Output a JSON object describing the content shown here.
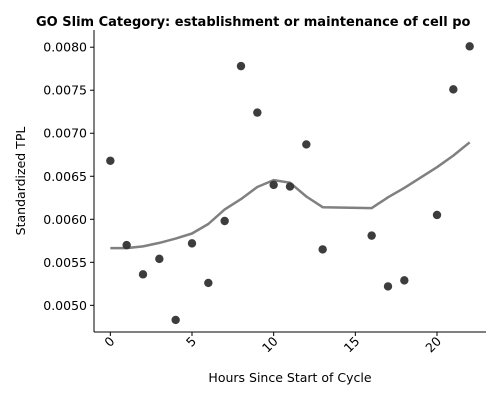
{
  "chart_data": {
    "type": "scatter",
    "title": "GO Slim Category: establishment or maintenance of cell po",
    "xlabel": "Hours Since Start of Cycle",
    "ylabel": "Standardized TPL",
    "xlim": [
      -1,
      23
    ],
    "ylim": [
      0.00469,
      0.0082
    ],
    "xticks": [
      0,
      5,
      10,
      15,
      20
    ],
    "yticks": [
      0.005,
      0.0055,
      0.006,
      0.0065,
      0.007,
      0.0075,
      0.008
    ],
    "ytick_labels": [
      "0.0050",
      "0.0055",
      "0.0060",
      "0.0065",
      "0.0070",
      "0.0075",
      "0.0080"
    ],
    "grid": false,
    "points": {
      "x": [
        0,
        1,
        2,
        3,
        4,
        5,
        6,
        7,
        8,
        9,
        10,
        11,
        12,
        13,
        16,
        17,
        18,
        20,
        21,
        22
      ],
      "y": [
        0.00668,
        0.0057,
        0.00536,
        0.00554,
        0.00483,
        0.00572,
        0.00526,
        0.00598,
        0.00778,
        0.00724,
        0.0064,
        0.00638,
        0.00687,
        0.00565,
        0.00581,
        0.00522,
        0.00529,
        0.00605,
        0.00751,
        0.00801
      ],
      "color": "#333333"
    },
    "trend": {
      "x": [
        0,
        1,
        2,
        3,
        4,
        5,
        6,
        7,
        8,
        9,
        10,
        11,
        12,
        13,
        16,
        17,
        18,
        20,
        21,
        22
      ],
      "y": [
        0.005665,
        0.005665,
        0.005685,
        0.005725,
        0.005775,
        0.005835,
        0.005945,
        0.006115,
        0.006235,
        0.006375,
        0.006455,
        0.006425,
        0.006265,
        0.00614,
        0.00613,
        0.006255,
        0.006365,
        0.006605,
        0.00674,
        0.006895
      ],
      "color": "#808080"
    }
  }
}
